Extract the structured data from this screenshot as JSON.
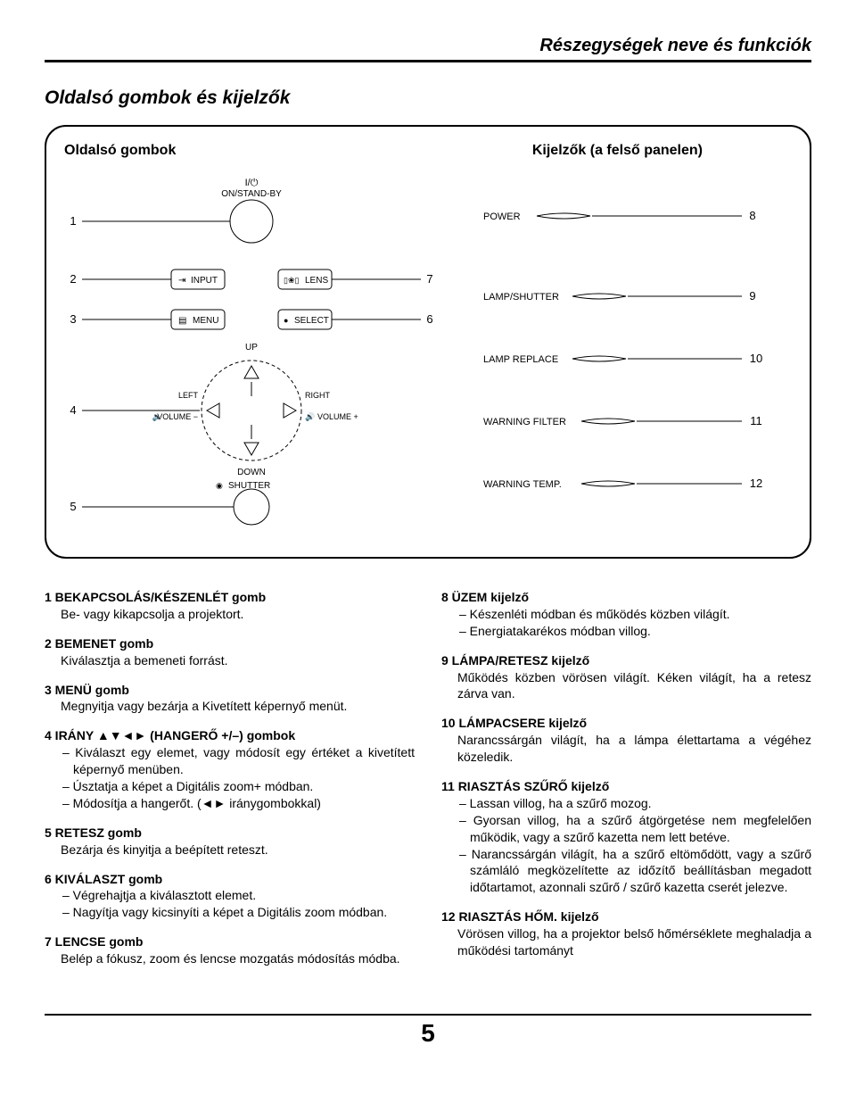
{
  "header": "Részegységek neve és funkciók",
  "section_title": "Oldalsó gombok és kijelzők",
  "panel": {
    "left_title": "Oldalsó gombok",
    "right_title": "Kijelzők (a felső panelen)"
  },
  "left_labels": {
    "onstandby_top": "I/⏻",
    "onstandby": "ON/STAND-BY",
    "input_icon": "⇥",
    "input": "INPUT",
    "lens_icon": "▯❀▯",
    "lens": "LENS",
    "menu_icon": "▤",
    "menu": "MENU",
    "select_icon": "●",
    "select": "SELECT",
    "up": "UP",
    "down": "DOWN",
    "left": "LEFT",
    "right": "RIGHT",
    "vol_icon": "🔈",
    "volm": "VOLUME −",
    "volp_icon": "🔊",
    "volp": "VOLUME +",
    "shutter_icon": "◉",
    "shutter": "SHUTTER"
  },
  "right_labels": {
    "power": "POWER",
    "lampshutter": "LAMP/SHUTTER",
    "lampreplace": "LAMP REPLACE",
    "warnfilter": "WARNING FILTER",
    "warntemp": "WARNING TEMP."
  },
  "callouts": {
    "n1": "1",
    "n2": "2",
    "n3": "3",
    "n4": "4",
    "n5": "5",
    "n6": "6",
    "n7": "7",
    "n8": "8",
    "n9": "9",
    "n10": "10",
    "n11": "11",
    "n12": "12"
  },
  "left_col": [
    {
      "num": "1",
      "title": "BEKAPCSOLÁS/KÉSZENLÉT gomb",
      "body": "Be- vagy kikapcsolja a projektort.",
      "subs": []
    },
    {
      "num": "2",
      "title": "BEMENET gomb",
      "body": "Kiválasztja a bemeneti forrást.",
      "subs": []
    },
    {
      "num": "3",
      "title": "MENÜ gomb",
      "body": "Megnyitja vagy bezárja a Kivetített képernyő menüt.",
      "subs": []
    },
    {
      "num": "4",
      "title": "IRÁNY ▲▼◄► (HANGERŐ +/–) gombok",
      "body": "",
      "subs": [
        "– Kiválaszt egy elemet, vagy módosít egy értéket a kivetített képernyő menüben.",
        "– Úsztatja a képet a Digitális zoom+ módban.",
        "– Módosítja a hangerőt. (◄► iránygombokkal)"
      ]
    },
    {
      "num": "5",
      "title": "RETESZ gomb",
      "body": "Bezárja és kinyitja a beépített reteszt.",
      "subs": []
    },
    {
      "num": "6",
      "title": "KIVÁLASZT gomb",
      "body": "",
      "subs": [
        "– Végrehajtja a kiválasztott elemet.",
        "– Nagyítja vagy kicsinyíti a képet a Digitális zoom módban."
      ]
    },
    {
      "num": "7",
      "title": "LENCSE gomb",
      "body": "Belép a fókusz, zoom és lencse mozgatás módosítás módba.",
      "subs": []
    }
  ],
  "right_col": [
    {
      "num": "8",
      "title": "ÜZEM kijelző",
      "body": "",
      "subs": [
        "– Készenléti módban és működés közben világít.",
        "– Energiatakarékos módban villog."
      ]
    },
    {
      "num": "9",
      "title": "LÁMPA/RETESZ kijelző",
      "body": "Működés közben vörösen világít. Kéken világít, ha a retesz zárva van.",
      "subs": []
    },
    {
      "num": "10",
      "title": "LÁMPACSERE kijelző",
      "body": "Narancssárgán világít, ha a lámpa élettartama a végéhez közeledik.",
      "subs": []
    },
    {
      "num": "11",
      "title": "RIASZTÁS SZŰRŐ kijelző",
      "body": "",
      "subs": [
        "– Lassan villog, ha a szűrő mozog.",
        "– Gyorsan villog, ha a szűrő átgörgetése nem megfelelően működik, vagy a szűrő kazetta nem lett betéve.",
        "– Narancssárgán világít, ha a szűrő eltömődött, vagy a szűrő számláló megközelítette az időzítő beállításban megadott időtartamot, azonnali szűrő / szűrő kazetta cserét jelezve."
      ]
    },
    {
      "num": "12",
      "title": "RIASZTÁS HŐM. kijelző",
      "body": "Vörösen villog, ha a projektor belső hőmérséklete meghaladja a működési tartományt",
      "subs": []
    }
  ],
  "page_number": "5"
}
